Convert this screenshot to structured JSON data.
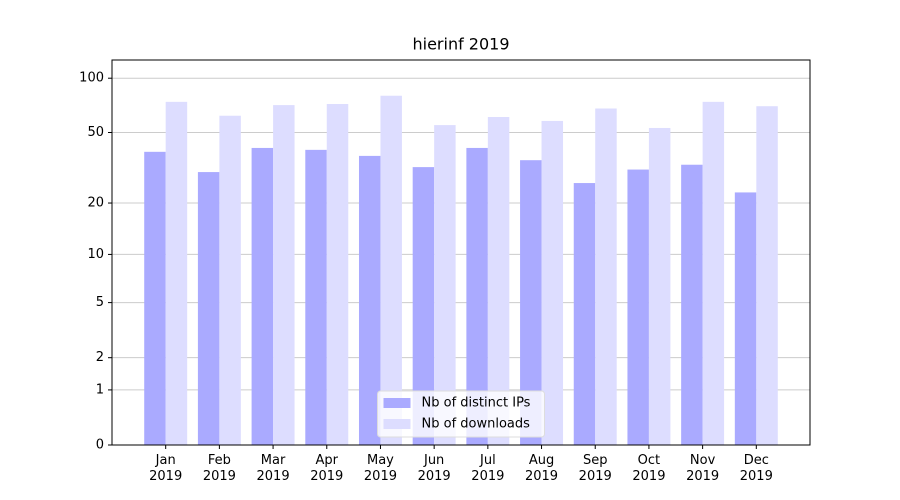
{
  "chart_data": {
    "type": "bar",
    "title": "hierinf 2019",
    "categories": [
      "Jan\n2019",
      "Feb\n2019",
      "Mar\n2019",
      "Apr\n2019",
      "May\n2019",
      "Jun\n2019",
      "Jul\n2019",
      "Aug\n2019",
      "Sep\n2019",
      "Oct\n2019",
      "Nov\n2019",
      "Dec\n2019"
    ],
    "series": [
      {
        "name": "Nb of distinct IPs",
        "color": "#aaaaff",
        "values": [
          39,
          30,
          41,
          40,
          37,
          32,
          41,
          35,
          26,
          31,
          33,
          23
        ]
      },
      {
        "name": "Nb of downloads",
        "color": "#ddddff",
        "values": [
          74,
          62,
          71,
          72,
          80,
          55,
          61,
          58,
          68,
          53,
          74,
          70
        ]
      }
    ],
    "yscale": "log1p",
    "ylim": [
      0,
      126
    ],
    "yticks": [
      0,
      1,
      2,
      5,
      10,
      20,
      50,
      100
    ],
    "grid": true,
    "legend": "lower center"
  }
}
